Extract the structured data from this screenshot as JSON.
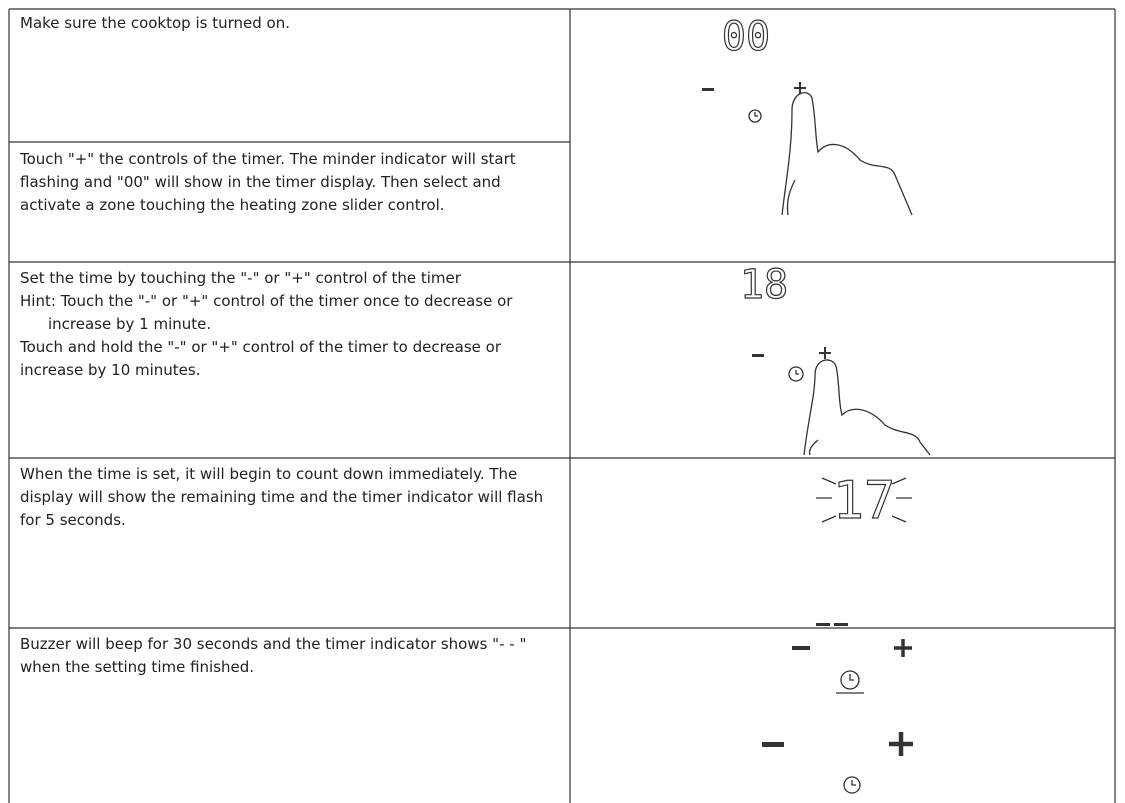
{
  "rows": [
    {
      "paragraphs": [
        "Make sure the cooktop is turned on."
      ]
    },
    {
      "paragraphs": [
        "Touch \"+\" the controls of the timer. The minder indicator will start flashing and \"00\" will show in the timer display. Then select and activate a zone touching the heating zone slider control."
      ]
    },
    {
      "paragraphs": [
        "Set the time by touching the \"-\" or \"+\" control of the timer",
        "Hint: Touch the \"-\" or \"+\" control of the timer once to decrease or increase by 1 minute.",
        "Touch and hold the \"-\" or \"+\" control of the timer to decrease or increase by 10 minutes."
      ]
    },
    {
      "paragraphs": [
        "When the time is set, it will begin to count down immediately. The display will show the remaining time and the timer indicator will flash for 5 seconds."
      ]
    },
    {
      "paragraphs": [
        "Buzzer will beep for 30 seconds and the timer indicator shows \"- - \" when the setting time finished."
      ]
    }
  ],
  "displays": [
    "00",
    "18",
    "17"
  ]
}
